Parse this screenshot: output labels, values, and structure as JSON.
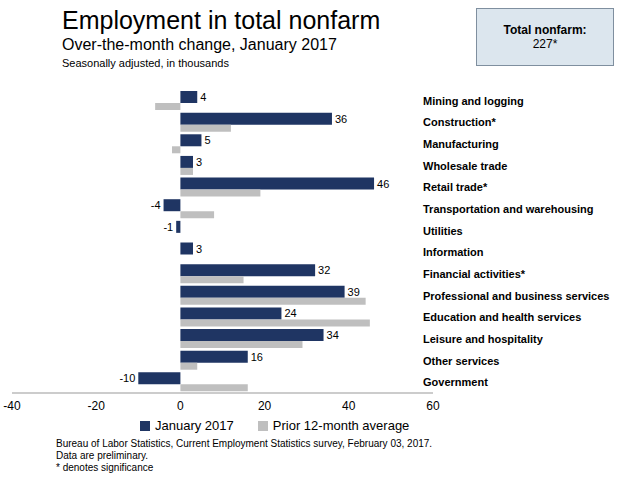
{
  "chart_data": {
    "type": "bar",
    "orientation": "horizontal",
    "title": "Employment in total nonfarm",
    "subtitle": "Over-the-month change, January 2017",
    "axis_note": "Seasonally adjusted, in thousands",
    "annotation": {
      "label": "Total nonfarm:",
      "value": "227*"
    },
    "categories": [
      "Mining and logging",
      "Construction*",
      "Manufacturing",
      "Wholesale trade",
      "Retail trade*",
      "Transportation and warehousing",
      "Utilities",
      "Information",
      "Financial activities*",
      "Professional and business services",
      "Education and health services",
      "Leisure and hospitality",
      "Other services",
      "Government"
    ],
    "series": [
      {
        "name": "January 2017",
        "color": "#1f3563",
        "data_labels": true,
        "values": [
          4,
          36,
          5,
          3,
          46,
          -4,
          -1,
          3,
          32,
          39,
          24,
          34,
          16,
          -10
        ]
      },
      {
        "name": "Prior 12-month average",
        "color": "#bfbfbf",
        "values": [
          -6,
          12,
          -2,
          3,
          19,
          8,
          0,
          0,
          15,
          44,
          45,
          29,
          4,
          16
        ]
      }
    ],
    "xlim": [
      -40,
      60
    ],
    "xticks": [
      -40,
      -20,
      0,
      20,
      40,
      60
    ],
    "grid": false,
    "legend": "bottom",
    "notes": [
      "Bureau of Labor Statistics, Current Employment Statistics survey, February 03, 2017.",
      "Data are preliminary.",
      "* denotes significance"
    ]
  }
}
